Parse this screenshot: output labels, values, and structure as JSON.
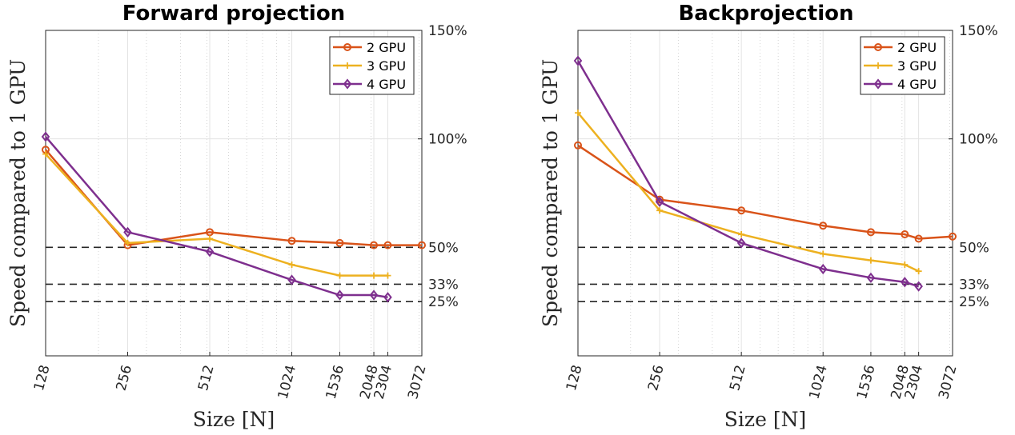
{
  "chart_data": [
    {
      "type": "line",
      "title": "Forward projection",
      "xlabel": "Size [N]",
      "ylabel": "Speed compared to 1 GPU",
      "x_scale": "log",
      "xlim": [
        128,
        3072
      ],
      "ylim": [
        0,
        150
      ],
      "x": [
        128,
        256,
        512,
        1024,
        1536,
        2048,
        2304,
        3072
      ],
      "x_tick_labels": [
        "128",
        "256",
        "512",
        "1024",
        "1536",
        "2048",
        "2304",
        "3072"
      ],
      "y_ticks": [
        150,
        100,
        50,
        33,
        25
      ],
      "y_tick_labels": [
        "150%",
        "100%",
        "50%",
        "33%",
        "25%"
      ],
      "reference_lines": [
        50,
        33,
        25
      ],
      "legend_location": "top-right",
      "series": [
        {
          "name": "2 GPU",
          "color": "#D95319",
          "marker": "circle",
          "values": [
            95,
            51,
            57,
            53,
            52,
            51,
            51,
            51
          ]
        },
        {
          "name": "3 GPU",
          "color": "#EDB120",
          "marker": "plus",
          "values": [
            93,
            52,
            54,
            42,
            37,
            37,
            37,
            null
          ]
        },
        {
          "name": "4 GPU",
          "color": "#7E2F8E",
          "marker": "diamond",
          "values": [
            101,
            57,
            48,
            35,
            28,
            28,
            27,
            null
          ]
        }
      ]
    },
    {
      "type": "line",
      "title": "Backprojection",
      "xlabel": "Size [N]",
      "ylabel": "Speed compared to 1 GPU",
      "x_scale": "log",
      "xlim": [
        128,
        3072
      ],
      "ylim": [
        0,
        150
      ],
      "x": [
        128,
        256,
        512,
        1024,
        1536,
        2048,
        2304,
        3072
      ],
      "x_tick_labels": [
        "128",
        "256",
        "512",
        "1024",
        "1536",
        "2048",
        "2304",
        "3072"
      ],
      "y_ticks": [
        150,
        100,
        50,
        33,
        25
      ],
      "y_tick_labels": [
        "150%",
        "100%",
        "50%",
        "33%",
        "25%"
      ],
      "reference_lines": [
        50,
        33,
        25
      ],
      "legend_location": "top-right",
      "series": [
        {
          "name": "2 GPU",
          "color": "#D95319",
          "marker": "circle",
          "values": [
            97,
            72,
            67,
            60,
            57,
            56,
            54,
            55
          ]
        },
        {
          "name": "3 GPU",
          "color": "#EDB120",
          "marker": "plus",
          "values": [
            112,
            67,
            56,
            47,
            44,
            42,
            39,
            null
          ]
        },
        {
          "name": "4 GPU",
          "color": "#7E2F8E",
          "marker": "diamond",
          "values": [
            136,
            71,
            52,
            40,
            36,
            34,
            32,
            null
          ]
        }
      ]
    }
  ]
}
